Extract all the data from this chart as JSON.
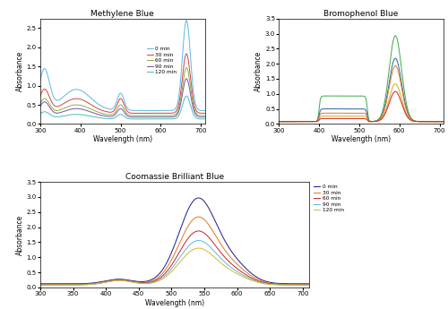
{
  "mb_title": "Methylene Blue",
  "bb_title": "Bromophenol Blue",
  "cb_title": "Coomassie Brilliant Blue",
  "xlabel": "Wavelength (nm)",
  "ylabel": "Absorbance",
  "legend_labels": [
    "0 min",
    "30 min",
    "60 min",
    "90 min",
    "120 min"
  ],
  "mb_colors": [
    "#5BB8E8",
    "#D94040",
    "#8DB041",
    "#7B52A0",
    "#45BFBF"
  ],
  "mb_xlim": [
    300,
    710
  ],
  "mb_ylim": [
    0,
    2.75
  ],
  "mb_yticks": [
    0,
    0.5,
    1.0,
    1.5,
    2.0,
    2.5
  ],
  "bb_colors": [
    "#3DAA4A",
    "#2E5FAA",
    "#E07820",
    "#D4AA20",
    "#CC2020"
  ],
  "bb_xlim": [
    300,
    710
  ],
  "bb_ylim": [
    0,
    3.5
  ],
  "bb_yticks": [
    0,
    0.5,
    1.0,
    1.5,
    2.0,
    2.5,
    3.0,
    3.5
  ],
  "cb_colors": [
    "#1A1A8C",
    "#E07820",
    "#CC2020",
    "#5BBBD8",
    "#D4B830"
  ],
  "cb_xlim": [
    300,
    710
  ],
  "cb_ylim": [
    0,
    3.5
  ],
  "cb_yticks": [
    0,
    0.5,
    1.0,
    1.5,
    2.0,
    2.5,
    3.0,
    3.5
  ]
}
